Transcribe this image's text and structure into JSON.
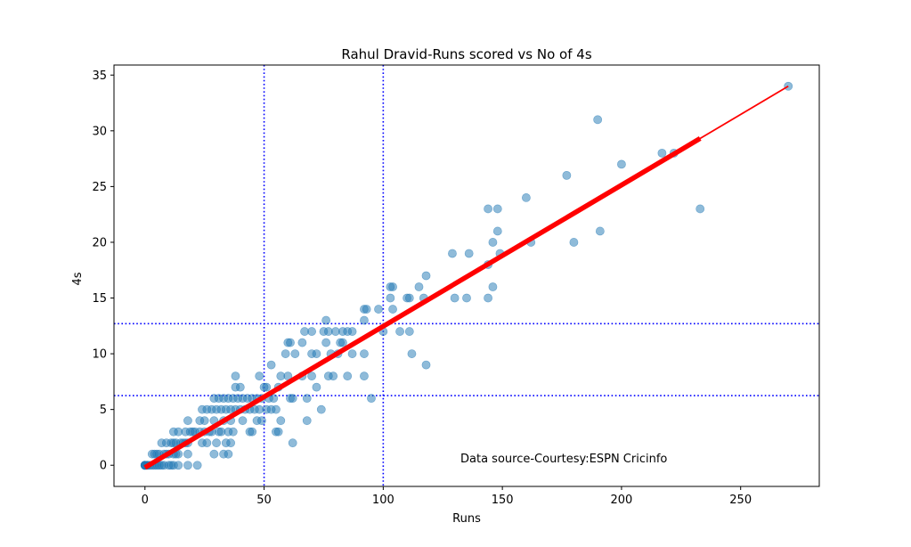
{
  "chart_data": {
    "type": "scatter",
    "title": "Rahul Dravid-Runs scored vs No of 4s",
    "xlabel": "Runs",
    "ylabel": "4s",
    "xlim": [
      -13,
      283
    ],
    "ylim": [
      -1.9,
      35.9
    ],
    "x_ticks": [
      0,
      50,
      100,
      150,
      200,
      250
    ],
    "y_ticks": [
      0,
      5,
      10,
      15,
      20,
      25,
      30,
      35
    ],
    "annotation": "Data source-Courtesy:ESPN Cricinfo",
    "point_color": "#1f77b4",
    "fit_color": "#ff0000",
    "ref_line_color": "#0000ff",
    "ref_lines": {
      "vertical_x": [
        50,
        100
      ],
      "horizontal_y": [
        6.25,
        12.7
      ]
    },
    "fit_line": {
      "x": [
        0,
        270
      ],
      "y": [
        -0.2,
        34
      ]
    },
    "fit_line_thick_x_max": 233,
    "points": [
      [
        0,
        0
      ],
      [
        0,
        0
      ],
      [
        0,
        0
      ],
      [
        0,
        0
      ],
      [
        0,
        0
      ],
      [
        1,
        0
      ],
      [
        1,
        0
      ],
      [
        2,
        0
      ],
      [
        3,
        0
      ],
      [
        4,
        0
      ],
      [
        5,
        0
      ],
      [
        6,
        0
      ],
      [
        7,
        0
      ],
      [
        8,
        0
      ],
      [
        10,
        0
      ],
      [
        11,
        0
      ],
      [
        12,
        0
      ],
      [
        14,
        0
      ],
      [
        18,
        0
      ],
      [
        22,
        0
      ],
      [
        3,
        1
      ],
      [
        4,
        1
      ],
      [
        5,
        1
      ],
      [
        6,
        1
      ],
      [
        8,
        1
      ],
      [
        9,
        1
      ],
      [
        10,
        1
      ],
      [
        12,
        1
      ],
      [
        13,
        1
      ],
      [
        14,
        1
      ],
      [
        18,
        1
      ],
      [
        29,
        1
      ],
      [
        33,
        1
      ],
      [
        35,
        1
      ],
      [
        7,
        2
      ],
      [
        9,
        2
      ],
      [
        11,
        2
      ],
      [
        12,
        2
      ],
      [
        13,
        2
      ],
      [
        15,
        2
      ],
      [
        16,
        2
      ],
      [
        17,
        2
      ],
      [
        18,
        2
      ],
      [
        24,
        2
      ],
      [
        26,
        2
      ],
      [
        30,
        2
      ],
      [
        34,
        2
      ],
      [
        36,
        2
      ],
      [
        62,
        2
      ],
      [
        12,
        3
      ],
      [
        14,
        3
      ],
      [
        17,
        3
      ],
      [
        19,
        3
      ],
      [
        20,
        3
      ],
      [
        21,
        3
      ],
      [
        23,
        3
      ],
      [
        25,
        3
      ],
      [
        27,
        3
      ],
      [
        28,
        3
      ],
      [
        31,
        3
      ],
      [
        32,
        3
      ],
      [
        35,
        3
      ],
      [
        37,
        3
      ],
      [
        44,
        3
      ],
      [
        45,
        3
      ],
      [
        55,
        3
      ],
      [
        56,
        3
      ],
      [
        18,
        4
      ],
      [
        23,
        4
      ],
      [
        25,
        4
      ],
      [
        29,
        4
      ],
      [
        33,
        4
      ],
      [
        36,
        4
      ],
      [
        41,
        4
      ],
      [
        47,
        4
      ],
      [
        49,
        4
      ],
      [
        57,
        4
      ],
      [
        68,
        4
      ],
      [
        24,
        5
      ],
      [
        26,
        5
      ],
      [
        28,
        5
      ],
      [
        30,
        5
      ],
      [
        32,
        5
      ],
      [
        34,
        5
      ],
      [
        36,
        5
      ],
      [
        38,
        5
      ],
      [
        40,
        5
      ],
      [
        42,
        5
      ],
      [
        44,
        5
      ],
      [
        46,
        5
      ],
      [
        48,
        5
      ],
      [
        51,
        5
      ],
      [
        53,
        5
      ],
      [
        55,
        5
      ],
      [
        74,
        5
      ],
      [
        29,
        6
      ],
      [
        31,
        6
      ],
      [
        33,
        6
      ],
      [
        35,
        6
      ],
      [
        37,
        6
      ],
      [
        39,
        6
      ],
      [
        41,
        6
      ],
      [
        43,
        6
      ],
      [
        45,
        6
      ],
      [
        47,
        6
      ],
      [
        49,
        6
      ],
      [
        52,
        6
      ],
      [
        54,
        6
      ],
      [
        61,
        6
      ],
      [
        62,
        6
      ],
      [
        68,
        6
      ],
      [
        95,
        6
      ],
      [
        38,
        7
      ],
      [
        40,
        7
      ],
      [
        50,
        7
      ],
      [
        51,
        7
      ],
      [
        56,
        7
      ],
      [
        72,
        7
      ],
      [
        38,
        8
      ],
      [
        48,
        8
      ],
      [
        57,
        8
      ],
      [
        60,
        8
      ],
      [
        66,
        8
      ],
      [
        70,
        8
      ],
      [
        77,
        8
      ],
      [
        79,
        8
      ],
      [
        85,
        8
      ],
      [
        92,
        8
      ],
      [
        53,
        9
      ],
      [
        118,
        9
      ],
      [
        59,
        10
      ],
      [
        63,
        10
      ],
      [
        70,
        10
      ],
      [
        72,
        10
      ],
      [
        78,
        10
      ],
      [
        81,
        10
      ],
      [
        87,
        10
      ],
      [
        92,
        10
      ],
      [
        112,
        10
      ],
      [
        60,
        11
      ],
      [
        61,
        11
      ],
      [
        66,
        11
      ],
      [
        76,
        11
      ],
      [
        82,
        11
      ],
      [
        83,
        11
      ],
      [
        67,
        12
      ],
      [
        70,
        12
      ],
      [
        75,
        12
      ],
      [
        77,
        12
      ],
      [
        80,
        12
      ],
      [
        83,
        12
      ],
      [
        85,
        12
      ],
      [
        87,
        12
      ],
      [
        100,
        12
      ],
      [
        107,
        12
      ],
      [
        111,
        12
      ],
      [
        76,
        13
      ],
      [
        92,
        13
      ],
      [
        92,
        14
      ],
      [
        93,
        14
      ],
      [
        98,
        14
      ],
      [
        104,
        14
      ],
      [
        103,
        15
      ],
      [
        110,
        15
      ],
      [
        111,
        15
      ],
      [
        117,
        15
      ],
      [
        130,
        15
      ],
      [
        135,
        15
      ],
      [
        144,
        15
      ],
      [
        103,
        16
      ],
      [
        104,
        16
      ],
      [
        115,
        16
      ],
      [
        146,
        16
      ],
      [
        118,
        17
      ],
      [
        144,
        18
      ],
      [
        129,
        19
      ],
      [
        136,
        19
      ],
      [
        149,
        19
      ],
      [
        146,
        20
      ],
      [
        162,
        20
      ],
      [
        180,
        20
      ],
      [
        148,
        21
      ],
      [
        191,
        21
      ],
      [
        144,
        23
      ],
      [
        148,
        23
      ],
      [
        233,
        23
      ],
      [
        160,
        24
      ],
      [
        177,
        26
      ],
      [
        200,
        27
      ],
      [
        217,
        28
      ],
      [
        222,
        28
      ],
      [
        190,
        31
      ],
      [
        270,
        34
      ]
    ]
  }
}
